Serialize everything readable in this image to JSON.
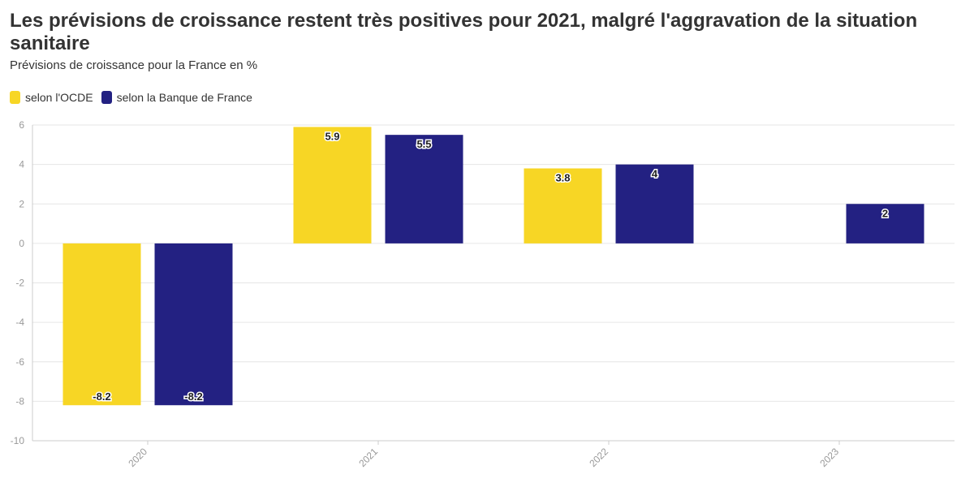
{
  "title": "Les prévisions de croissance restent très positives pour 2021, malgré l'aggravation de la situation sanitaire",
  "subtitle": "Prévisions de croissance pour la France en %",
  "colors": {
    "ocde": "#f7d625",
    "bdf": "#232182",
    "grid": "#e6e6e6",
    "axis": "#cccccc"
  },
  "chart_data": {
    "type": "bar",
    "categories": [
      "2020",
      "2021",
      "2022",
      "2023"
    ],
    "series": [
      {
        "name": "selon l'OCDE",
        "values": [
          -8.2,
          5.9,
          3.8,
          null
        ]
      },
      {
        "name": "selon la Banque de France",
        "values": [
          -8.2,
          5.5,
          4,
          2
        ]
      }
    ],
    "data_labels": [
      [
        "-8.2",
        "5.9",
        "3.8",
        ""
      ],
      [
        "-8.2",
        "5.5",
        "4",
        "2"
      ]
    ],
    "y_ticks": [
      6,
      4,
      2,
      0,
      -2,
      -4,
      -6,
      -8,
      -10
    ],
    "ylim": [
      -10,
      6
    ],
    "grid": true,
    "legend": "top-left"
  }
}
